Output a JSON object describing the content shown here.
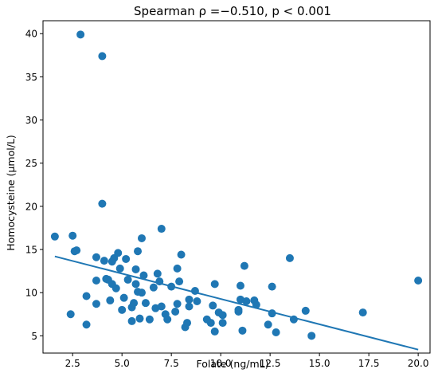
{
  "chart_data": {
    "type": "scatter",
    "title": "Spearman ρ =−0.510, p < 0.001",
    "xlabel": "Folate (ng/mL)",
    "ylabel": "Homocysteine (μmol/L)",
    "xlim": [
      1.0,
      20.6
    ],
    "ylim": [
      3.0,
      41.5
    ],
    "xticks": [
      2.5,
      5.0,
      7.5,
      10.0,
      12.5,
      15.0,
      17.5,
      20.0
    ],
    "xtick_labels": [
      "2.5",
      "5.0",
      "7.5",
      "10.0",
      "12.5",
      "15.0",
      "17.5",
      "20.0"
    ],
    "yticks": [
      5,
      10,
      15,
      20,
      25,
      30,
      35,
      40
    ],
    "ytick_labels": [
      "5",
      "10",
      "15",
      "20",
      "25",
      "30",
      "35",
      "40"
    ],
    "grid": false,
    "legend": "none",
    "point_color": "#1f77b4",
    "line_color": "#1f77b4",
    "points": [
      {
        "x": 1.6,
        "y": 16.5
      },
      {
        "x": 2.4,
        "y": 7.5
      },
      {
        "x": 2.5,
        "y": 16.6
      },
      {
        "x": 2.6,
        "y": 14.8
      },
      {
        "x": 2.7,
        "y": 14.9
      },
      {
        "x": 2.9,
        "y": 39.9
      },
      {
        "x": 3.2,
        "y": 9.6
      },
      {
        "x": 3.2,
        "y": 6.3
      },
      {
        "x": 3.7,
        "y": 8.7
      },
      {
        "x": 3.7,
        "y": 11.4
      },
      {
        "x": 3.7,
        "y": 14.1
      },
      {
        "x": 4.0,
        "y": 37.4
      },
      {
        "x": 4.0,
        "y": 20.3
      },
      {
        "x": 4.1,
        "y": 13.7
      },
      {
        "x": 4.2,
        "y": 11.6
      },
      {
        "x": 4.3,
        "y": 11.5
      },
      {
        "x": 4.4,
        "y": 9.1
      },
      {
        "x": 4.5,
        "y": 13.6
      },
      {
        "x": 4.5,
        "y": 11.0
      },
      {
        "x": 4.6,
        "y": 14.0
      },
      {
        "x": 4.7,
        "y": 10.5
      },
      {
        "x": 4.8,
        "y": 14.6
      },
      {
        "x": 4.9,
        "y": 12.8
      },
      {
        "x": 5.0,
        "y": 8.0
      },
      {
        "x": 5.1,
        "y": 9.4
      },
      {
        "x": 5.2,
        "y": 13.9
      },
      {
        "x": 5.3,
        "y": 11.5
      },
      {
        "x": 5.5,
        "y": 6.7
      },
      {
        "x": 5.5,
        "y": 8.3
      },
      {
        "x": 5.6,
        "y": 8.8
      },
      {
        "x": 5.7,
        "y": 12.7
      },
      {
        "x": 5.7,
        "y": 11.0
      },
      {
        "x": 5.8,
        "y": 14.8
      },
      {
        "x": 5.8,
        "y": 10.1
      },
      {
        "x": 5.9,
        "y": 7.0
      },
      {
        "x": 6.0,
        "y": 16.3
      },
      {
        "x": 6.0,
        "y": 10.0
      },
      {
        "x": 6.1,
        "y": 12.0
      },
      {
        "x": 6.2,
        "y": 8.8
      },
      {
        "x": 6.4,
        "y": 6.9
      },
      {
        "x": 6.6,
        "y": 10.6
      },
      {
        "x": 6.7,
        "y": 8.2
      },
      {
        "x": 6.8,
        "y": 12.2
      },
      {
        "x": 6.9,
        "y": 11.3
      },
      {
        "x": 7.0,
        "y": 17.4
      },
      {
        "x": 7.0,
        "y": 8.4
      },
      {
        "x": 7.2,
        "y": 7.5
      },
      {
        "x": 7.3,
        "y": 6.9
      },
      {
        "x": 7.5,
        "y": 10.7
      },
      {
        "x": 7.7,
        "y": 7.8
      },
      {
        "x": 7.8,
        "y": 12.8
      },
      {
        "x": 7.8,
        "y": 8.7
      },
      {
        "x": 7.9,
        "y": 11.3
      },
      {
        "x": 8.0,
        "y": 14.4
      },
      {
        "x": 8.2,
        "y": 6.0
      },
      {
        "x": 8.3,
        "y": 6.5
      },
      {
        "x": 8.4,
        "y": 8.4
      },
      {
        "x": 8.4,
        "y": 9.2
      },
      {
        "x": 8.7,
        "y": 10.2
      },
      {
        "x": 8.8,
        "y": 9.0
      },
      {
        "x": 9.3,
        "y": 6.9
      },
      {
        "x": 9.5,
        "y": 6.5
      },
      {
        "x": 9.6,
        "y": 8.5
      },
      {
        "x": 9.7,
        "y": 11.0
      },
      {
        "x": 9.7,
        "y": 5.5
      },
      {
        "x": 9.9,
        "y": 7.7
      },
      {
        "x": 10.1,
        "y": 7.4
      },
      {
        "x": 10.1,
        "y": 6.5
      },
      {
        "x": 10.9,
        "y": 7.8
      },
      {
        "x": 10.9,
        "y": 8.0
      },
      {
        "x": 11.0,
        "y": 9.2
      },
      {
        "x": 11.0,
        "y": 10.8
      },
      {
        "x": 11.1,
        "y": 5.6
      },
      {
        "x": 11.2,
        "y": 13.1
      },
      {
        "x": 11.3,
        "y": 9.0
      },
      {
        "x": 11.7,
        "y": 9.1
      },
      {
        "x": 11.8,
        "y": 8.6
      },
      {
        "x": 12.4,
        "y": 6.3
      },
      {
        "x": 12.6,
        "y": 7.6
      },
      {
        "x": 12.6,
        "y": 10.7
      },
      {
        "x": 12.8,
        "y": 5.4
      },
      {
        "x": 13.5,
        "y": 14.0
      },
      {
        "x": 13.7,
        "y": 6.9
      },
      {
        "x": 14.3,
        "y": 7.9
      },
      {
        "x": 14.6,
        "y": 5.0
      },
      {
        "x": 17.2,
        "y": 7.7
      },
      {
        "x": 20.0,
        "y": 11.4
      }
    ],
    "fit_line": {
      "x": [
        1.6,
        20.0
      ],
      "y": [
        14.2,
        3.4
      ]
    }
  }
}
